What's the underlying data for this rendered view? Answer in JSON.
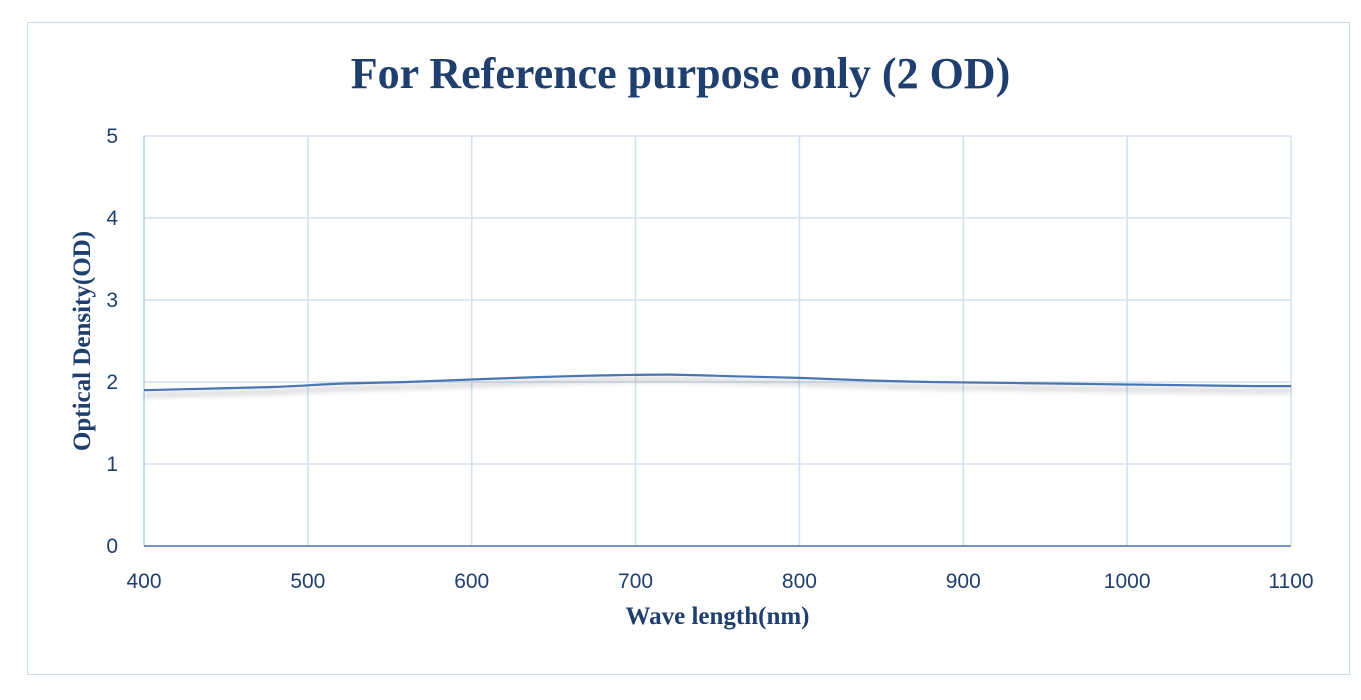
{
  "chart_data": {
    "type": "line",
    "title": "For Reference purpose only (2 OD)",
    "xlabel": "Wave length(nm)",
    "ylabel": "Optical Density(OD)",
    "xlim": [
      400,
      1100
    ],
    "ylim": [
      0,
      5
    ],
    "xticks": [
      400,
      500,
      600,
      700,
      800,
      900,
      1000,
      1100
    ],
    "yticks": [
      0,
      1,
      2,
      3,
      4,
      5
    ],
    "grid": true,
    "legend": "none",
    "line_color": "#4a74b0",
    "series": [
      {
        "x": [
          400,
          440,
          480,
          520,
          560,
          600,
          640,
          680,
          720,
          760,
          800,
          840,
          880,
          920,
          960,
          1000,
          1040,
          1080,
          1100
        ],
        "values": [
          1.9,
          1.92,
          1.94,
          1.98,
          2.0,
          2.03,
          2.06,
          2.08,
          2.09,
          2.07,
          2.05,
          2.02,
          2.0,
          1.99,
          1.98,
          1.97,
          1.96,
          1.95,
          1.95
        ]
      }
    ]
  }
}
